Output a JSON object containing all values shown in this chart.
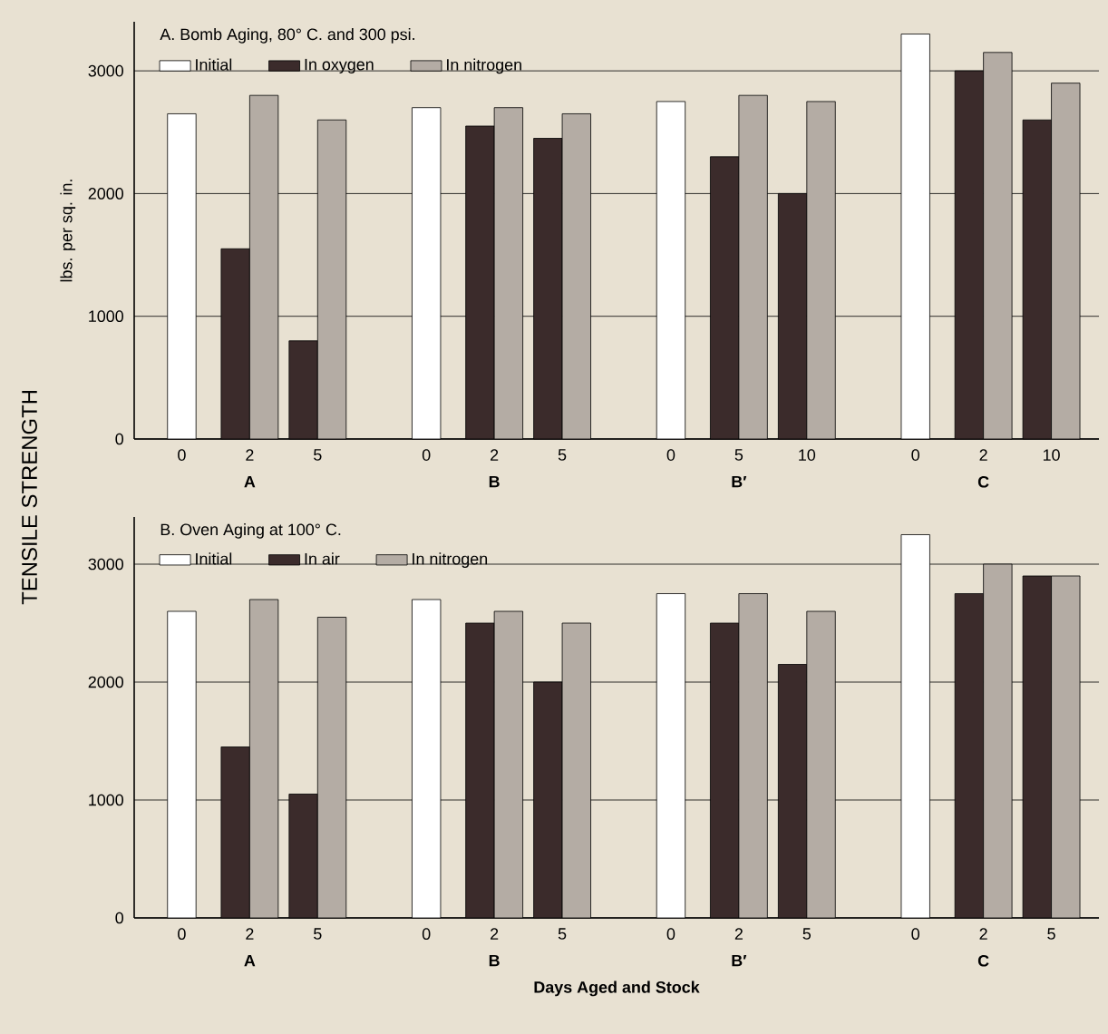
{
  "chart_data": [
    {
      "type": "bar",
      "title": "A. Bomb Aging, 80° C. and 300 psi.",
      "ylabel": "lbs. per sq. in.",
      "categories": [
        "0",
        "2",
        "5",
        "0",
        "2",
        "5",
        "0",
        "5",
        "10",
        "0",
        "2",
        "10"
      ],
      "series": [
        {
          "name": "Initial",
          "color": "#ffffff",
          "values": [
            2650,
            null,
            null,
            2700,
            null,
            null,
            2750,
            null,
            null,
            3300,
            null,
            null
          ]
        },
        {
          "name": "In oxygen",
          "color": "#3b2b2b",
          "values": [
            null,
            1550,
            800,
            null,
            2550,
            2450,
            null,
            2300,
            2000,
            null,
            3000,
            2600
          ]
        },
        {
          "name": "In nitrogen",
          "color": "#b4aca4",
          "values": [
            null,
            2800,
            2600,
            null,
            2700,
            2650,
            null,
            2800,
            2750,
            null,
            3150,
            2900
          ]
        }
      ],
      "annotations": [
        "A",
        "B",
        "B′",
        "C"
      ],
      "ylim": [
        0,
        3400
      ],
      "yticks": [
        0,
        1000,
        2000,
        3000
      ],
      "grid": "y",
      "legend": "top left"
    },
    {
      "type": "bar",
      "title": "B. Oven Aging at 100° C.",
      "ylabel": "TENSILE STRENGTH",
      "xlabel": "Days Aged and Stock",
      "categories": [
        "0",
        "2",
        "5",
        "0",
        "2",
        "5",
        "0",
        "2",
        "5",
        "0",
        "2",
        "5"
      ],
      "series": [
        {
          "name": "Initial",
          "color": "#ffffff",
          "values": [
            2600,
            null,
            null,
            2700,
            null,
            null,
            2750,
            null,
            null,
            3250,
            null,
            null
          ]
        },
        {
          "name": "In air",
          "color": "#3b2b2b",
          "values": [
            null,
            1450,
            1050,
            null,
            2500,
            2000,
            null,
            2500,
            2150,
            null,
            2750,
            2900
          ]
        },
        {
          "name": "In nitrogen",
          "color": "#b4aca4",
          "values": [
            null,
            2700,
            2550,
            null,
            2600,
            2500,
            null,
            2750,
            2600,
            null,
            3000,
            2900
          ]
        }
      ],
      "annotations": [
        "A",
        "B",
        "B′",
        "C"
      ],
      "ylim": [
        0,
        3400
      ],
      "yticks": [
        0,
        1000,
        2000,
        3000
      ],
      "grid": "y",
      "legend": "top left"
    }
  ]
}
